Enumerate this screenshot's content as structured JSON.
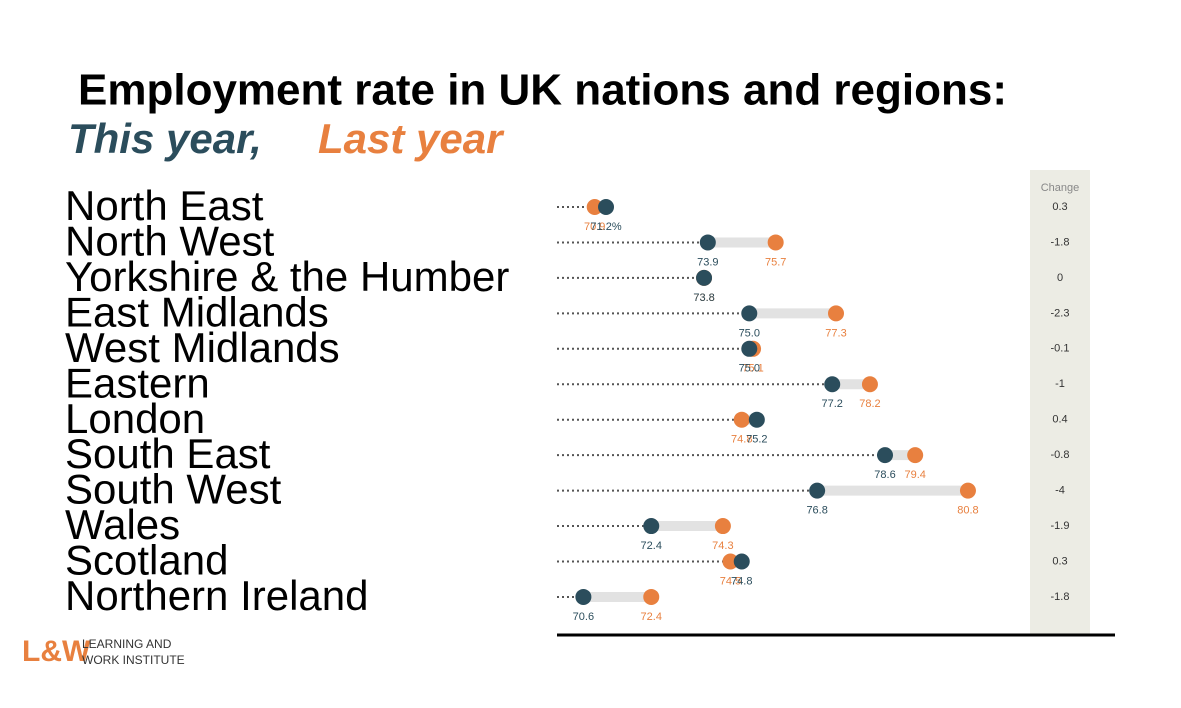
{
  "chart_data": {
    "type": "dumbbell",
    "title": "Employment rate in UK nations and regions:",
    "categories": [
      "North East",
      "North West",
      "Yorkshire & the Humber",
      "East Midlands",
      "West Midlands",
      "Eastern",
      "London",
      "South East",
      "South West",
      "Wales",
      "Scotland",
      "Northern Ireland"
    ],
    "series": [
      {
        "name": "This year,",
        "color": "#2b4d5c",
        "values": [
          71.2,
          73.9,
          73.8,
          75.0,
          75.0,
          77.2,
          75.2,
          78.6,
          76.8,
          72.4,
          74.8,
          70.6
        ],
        "value_labels": [
          "71.2%",
          "73.9",
          "73.8",
          "75.0",
          "75.0",
          "77.2",
          "75.2",
          "78.6",
          "76.8",
          "72.4",
          "74.8",
          "70.6"
        ]
      },
      {
        "name": "Last year",
        "color": "#e8803f",
        "values": [
          70.9,
          75.7,
          73.8,
          77.3,
          75.1,
          78.2,
          74.8,
          79.4,
          80.8,
          74.3,
          74.5,
          72.4
        ],
        "value_labels": [
          "70.9",
          "75.7",
          "73.8",
          "77.3",
          "75.1",
          "78.2",
          "74.8",
          "79.4",
          "80.8",
          "74.3",
          "74.5",
          "72.4"
        ]
      }
    ],
    "change_header": "Change",
    "change": [
      0.3,
      -1.8,
      0,
      -2.3,
      -0.1,
      -1,
      0.4,
      -0.8,
      -4,
      -1.9,
      0.3,
      -1.8
    ],
    "xlim": [
      69.9,
      84.7
    ]
  },
  "logo": {
    "mark": "L&W",
    "line1": "LEARNING AND",
    "line2": "WORK INSTITUTE"
  }
}
